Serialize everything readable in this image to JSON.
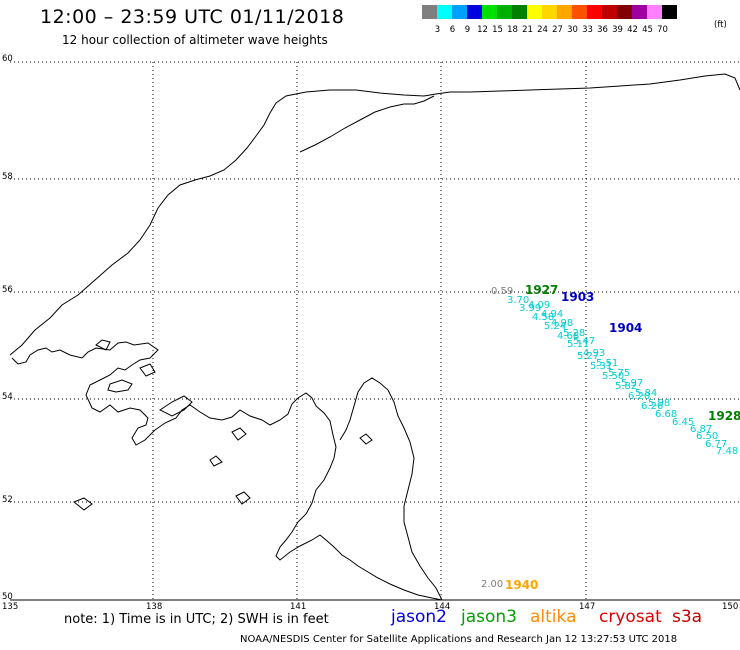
{
  "title": "12:00 – 23:59 UTC 01/11/2018",
  "subtitle": "12 hour collection of altimeter wave heights",
  "colorscale": {
    "labels": [
      "3",
      "6",
      "9",
      "12",
      "15",
      "18",
      "21",
      "24",
      "27",
      "30",
      "33",
      "36",
      "39",
      "42",
      "45",
      "70"
    ],
    "colors": [
      "#7f7f7f",
      "#00ffff",
      "#00a0ff",
      "#0000e0",
      "#00e000",
      "#00b000",
      "#008000",
      "#ffff00",
      "#ffd700",
      "#ffa500",
      "#ff5000",
      "#ff0000",
      "#c00000",
      "#800000",
      "#a000a0",
      "#ff80ff",
      "#000000"
    ],
    "unit": "(ft)"
  },
  "map": {
    "lat_labels": [
      "60",
      "58",
      "56",
      "54",
      "52",
      "50"
    ],
    "lon_labels": [
      "135",
      "138",
      "141",
      "144",
      "147",
      "150"
    ]
  },
  "tracks": [
    {
      "time": "1927",
      "color": "#008000"
    },
    {
      "time": "1903",
      "color": "#0000c0"
    },
    {
      "time": "1904",
      "color": "#0000c0"
    },
    {
      "time": "1928",
      "color": "#008000"
    },
    {
      "time": "1940",
      "color": "#ffa500"
    }
  ],
  "swh_values": [
    "0.59",
    "3.70",
    "3.99",
    "4.09",
    "4.58",
    "4.94",
    "5.24",
    "4.98",
    "4.68",
    "5.28",
    "5.11",
    "5.47",
    "5.27",
    "4.93",
    "5.31",
    "5.51",
    "5.50",
    "5.75",
    "5.82",
    "5.97",
    "6.20",
    "5.84",
    "6.26",
    "5.98",
    "6.68",
    "6.45",
    "6.87",
    "6.50",
    "6.77",
    "7.48",
    "2.00"
  ],
  "note": "note:  1) Time is in UTC;  2) SWH is in feet",
  "satellites": [
    {
      "name": "jason2",
      "color": "#0000e0"
    },
    {
      "name": "jason3",
      "color": "#00a000"
    },
    {
      "name": "altika",
      "color": "#ff8c00"
    },
    {
      "name": "cryosat",
      "color": "#e00000"
    },
    {
      "name": "s3a",
      "color": "#c00000"
    }
  ],
  "credit": "NOAA/NESDIS Center for Satellite Applications and Research     Jan 12 13:27:53 UTC 2018"
}
